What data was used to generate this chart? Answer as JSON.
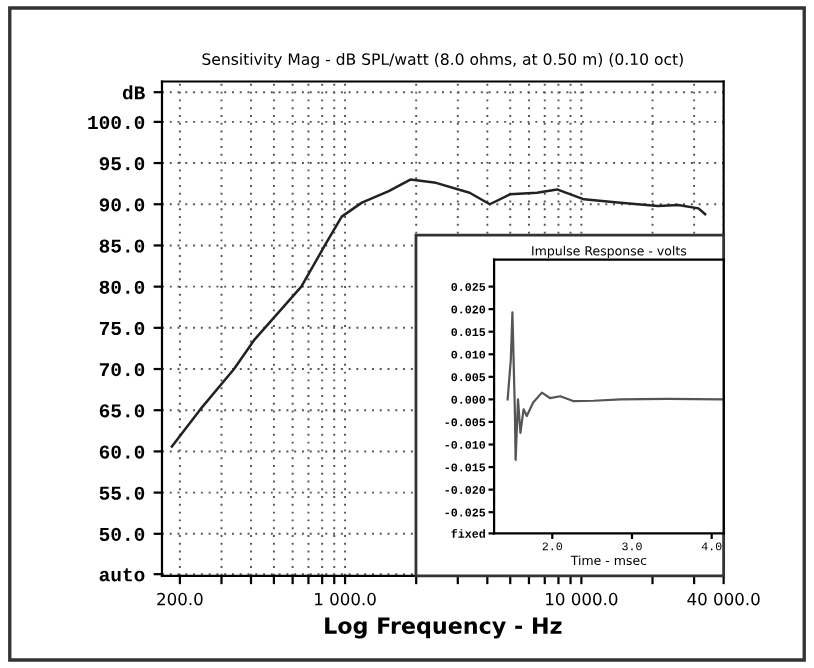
{
  "chart_data": [
    {
      "type": "line",
      "title": "Sensitivity Mag - dB SPL/watt (8.0 ohms, at 0.50 m) (0.10 oct)",
      "xlabel": "Log Frequency - Hz",
      "log": "x",
      "grid": true,
      "marker": "none",
      "line_style": "solid",
      "x": [
        185,
        244,
        339,
        412,
        653,
        821,
        968,
        1178,
        1531,
        1890,
        2425,
        3365,
        4100,
        4990,
        6490,
        7890,
        10260,
        14250,
        21100,
        25700,
        31300,
        33400
      ],
      "series": [
        {
          "color": "#222222",
          "values": [
            60.6,
            65.1,
            70.0,
            73.5,
            80.0,
            85.0,
            88.5,
            90.2,
            91.6,
            93.0,
            92.6,
            91.4,
            90.0,
            91.2,
            91.4,
            91.8,
            90.6,
            90.2,
            89.8,
            89.9,
            89.5,
            88.8
          ]
        }
      ],
      "xlim": [
        168,
        40000
      ],
      "ylim": [
        44.9,
        104.9
      ],
      "xticks": [
        {
          "value": 200,
          "label": "200.0"
        },
        {
          "value": 300,
          "label": null
        },
        {
          "value": 400,
          "label": null
        },
        {
          "value": 500,
          "label": null
        },
        {
          "value": 600,
          "label": null
        },
        {
          "value": 700,
          "label": null
        },
        {
          "value": 800,
          "label": null
        },
        {
          "value": 900,
          "label": null
        },
        {
          "value": 1000,
          "label": "1 000.0"
        },
        {
          "value": 2000,
          "label": null
        },
        {
          "value": 3000,
          "label": null
        },
        {
          "value": 4000,
          "label": null
        },
        {
          "value": 5000,
          "label": null
        },
        {
          "value": 6000,
          "label": null
        },
        {
          "value": 7000,
          "label": null
        },
        {
          "value": 8000,
          "label": null
        },
        {
          "value": 9000,
          "label": null
        },
        {
          "value": 10000,
          "label": "10 000.0"
        },
        {
          "value": 20000,
          "label": null
        },
        {
          "value": 30000,
          "label": null
        },
        {
          "value": 40000,
          "label": "40 000.0"
        }
      ],
      "yticks": [
        {
          "value": 45.1,
          "label": "auto"
        },
        {
          "value": 50,
          "label": "50.0"
        },
        {
          "value": 55,
          "label": "55.0"
        },
        {
          "value": 60,
          "label": "60.0"
        },
        {
          "value": 65,
          "label": "65.0"
        },
        {
          "value": 70,
          "label": "70.0"
        },
        {
          "value": 75,
          "label": "75.0"
        },
        {
          "value": 80,
          "label": "80.0"
        },
        {
          "value": 85,
          "label": "85.0"
        },
        {
          "value": 90,
          "label": "90.0"
        },
        {
          "value": 95,
          "label": "95.0"
        },
        {
          "value": 100,
          "label": "100.0"
        },
        {
          "value": 103.6,
          "label": "dB"
        }
      ]
    },
    {
      "type": "line",
      "title": "Impulse Response - volts",
      "xlabel": "Time - msec",
      "marker": "none",
      "line_style": "solid",
      "x": [
        1.44,
        1.48,
        1.5,
        1.53,
        1.54,
        1.57,
        1.6,
        1.64,
        1.68,
        1.76,
        1.87,
        1.97,
        2.1,
        2.27,
        2.52,
        2.86,
        3.44,
        4.13
      ],
      "series": [
        {
          "color": "#555555",
          "values": [
            0,
            0.0089,
            0.0193,
            -0.0022,
            -0.0134,
            0,
            -0.0074,
            -0.0022,
            -0.0037,
            -0.0007,
            0.0015,
            0.0003,
            0.0007,
            -0.0004,
            -0.0003,
            0,
            0.0001,
            0
          ]
        }
      ],
      "xlim": [
        1.27,
        4.15
      ],
      "ylim": [
        -0.0297,
        0.031
      ],
      "xticks": [
        {
          "value": 2.0,
          "label": "2.0"
        },
        {
          "value": 3.0,
          "label": "3.0"
        },
        {
          "value": 4.0,
          "label": "4.0"
        }
      ],
      "yticks": [
        {
          "value": -0.0297,
          "label": "fixed"
        },
        {
          "value": -0.025,
          "label": "-0.025"
        },
        {
          "value": -0.02,
          "label": "-0.020"
        },
        {
          "value": -0.015,
          "label": "-0.015"
        },
        {
          "value": -0.01,
          "label": "-0.010"
        },
        {
          "value": -0.005,
          "label": "-0.005"
        },
        {
          "value": 0,
          "label": "0.000"
        },
        {
          "value": 0.005,
          "label": "0.005"
        },
        {
          "value": 0.01,
          "label": "0.010"
        },
        {
          "value": 0.015,
          "label": "0.015"
        },
        {
          "value": 0.02,
          "label": "0.020"
        },
        {
          "value": 0.025,
          "label": "0.025"
        }
      ]
    }
  ]
}
